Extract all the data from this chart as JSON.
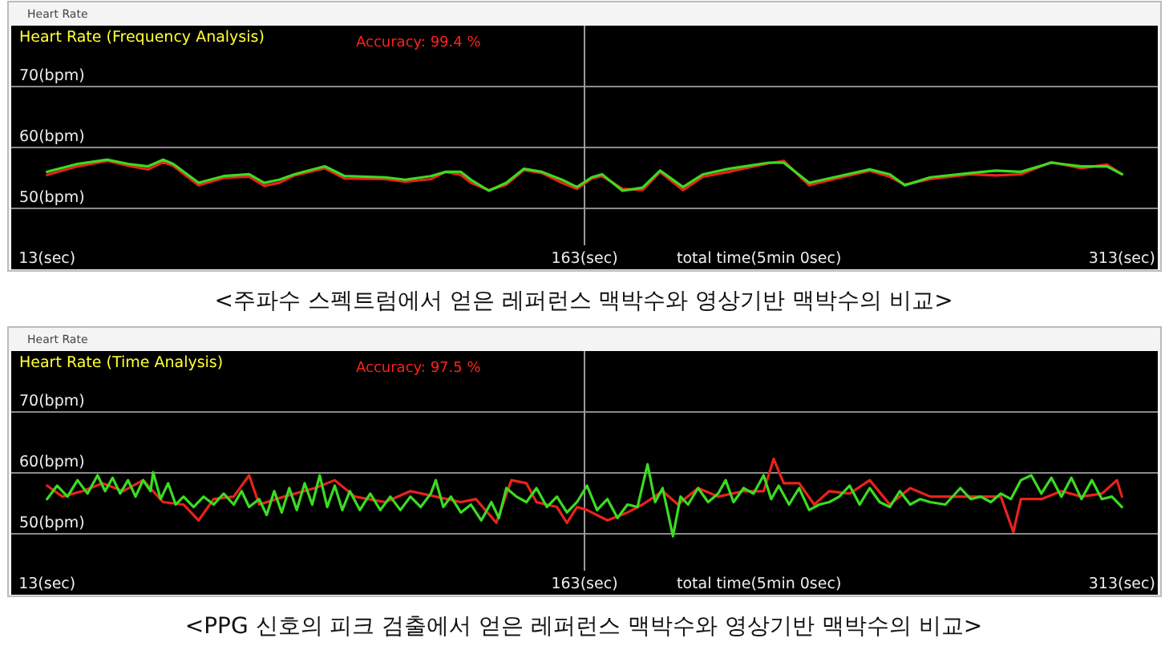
{
  "chart_data": [
    {
      "type": "line",
      "subtitle": "Heart Rate",
      "title": "Heart Rate (Frequency Analysis)",
      "annotations": [
        "Accuracy: 99.4 %",
        "total time(5min 0sec)",
        "<주파수 스펙트럼에서 얻은 레퍼런스 맥박수와 영상기반 맥박수의 비교>"
      ],
      "xlim": [
        3,
        323
      ],
      "ylim": [
        40,
        80
      ],
      "xticks": [
        {
          "value": 13,
          "label": "13(sec)"
        },
        {
          "value": 163,
          "label": "163(sec)"
        },
        {
          "value": 313,
          "label": "313(sec)"
        }
      ],
      "yticks": [
        {
          "value": 50,
          "label": "50(bpm)"
        },
        {
          "value": 60,
          "label": "60(bpm)"
        },
        {
          "value": 70,
          "label": "70(bpm)"
        }
      ],
      "grid": "y",
      "ref_lines": [
        {
          "axis": "x",
          "value": 163,
          "color": "#9a9a9a"
        }
      ],
      "series": [
        {
          "color": "#e8231c",
          "x": [
            13,
            21.5,
            29.9,
            35.6,
            41.2,
            45.4,
            48.2,
            55.3,
            62.3,
            69.4,
            73.6,
            77.8,
            82.0,
            90.5,
            96.1,
            107.4,
            113.0,
            120.1,
            124.3,
            128.5,
            131.3,
            136.3,
            141.2,
            146.1,
            151.1,
            156.7,
            160.9,
            165,
            167.9,
            173.6,
            179.2,
            184.1,
            190.5,
            196.1,
            203.2,
            214.4,
            218.6,
            225.7,
            234.1,
            242.6,
            248.2,
            252.4,
            259.5,
            270.8,
            277.8,
            284.8,
            293.3,
            301.7,
            308.8,
            313
          ],
          "values": [
            55.5,
            56.9,
            57.8,
            57.0,
            56.4,
            57.6,
            57.0,
            53.8,
            55.0,
            55.2,
            53.7,
            54.2,
            55.4,
            56.6,
            54.9,
            54.8,
            54.4,
            54.8,
            56.0,
            55.5,
            54.2,
            53.0,
            53.9,
            56.3,
            55.8,
            54.2,
            53.2,
            54.9,
            55.3,
            53.2,
            53.0,
            56.0,
            53.0,
            55.2,
            56.0,
            57.4,
            57.8,
            53.8,
            55.0,
            56.2,
            55.2,
            53.9,
            54.8,
            55.6,
            55.4,
            55.6,
            57.6,
            56.6,
            57.2,
            55.6
          ]
        },
        {
          "color": "#3bdc21",
          "x": [
            13,
            21.5,
            29.9,
            35.6,
            41.2,
            45.4,
            48.2,
            55.3,
            62.3,
            69.4,
            73.6,
            77.8,
            82.0,
            90.5,
            96.1,
            107.4,
            113.0,
            120.1,
            124.3,
            128.5,
            131.3,
            136.3,
            141.2,
            146.1,
            151.1,
            156.7,
            160.9,
            165,
            167.9,
            173.6,
            179.2,
            184.1,
            190.5,
            196.1,
            203.2,
            214.4,
            218.6,
            225.7,
            234.1,
            242.6,
            248.2,
            252.4,
            259.5,
            270.8,
            277.8,
            284.8,
            293.3,
            301.7,
            308.8,
            313
          ],
          "values": [
            56.0,
            57.3,
            58.0,
            57.3,
            56.9,
            58.0,
            57.3,
            54.2,
            55.3,
            55.6,
            54.2,
            54.7,
            55.6,
            56.9,
            55.3,
            55.1,
            54.7,
            55.3,
            56.0,
            56.0,
            54.7,
            52.9,
            54.2,
            56.5,
            56.0,
            54.7,
            53.5,
            55.1,
            55.6,
            52.9,
            53.4,
            56.2,
            53.5,
            55.6,
            56.5,
            57.5,
            57.5,
            54.2,
            55.3,
            56.4,
            55.6,
            53.8,
            55.1,
            55.8,
            56.2,
            56.0,
            57.5,
            56.9,
            56.9,
            55.6
          ]
        }
      ]
    },
    {
      "type": "line",
      "subtitle": "Heart Rate",
      "title": "Heart Rate (Time Analysis)",
      "annotations": [
        "Accuracy: 97.5 %",
        "total time(5min 0sec)",
        "<PPG 신호의 피크 검출에서 얻은 레퍼런스 맥박수와 영상기반 맥박수의 비교>"
      ],
      "xlim": [
        3,
        323
      ],
      "ylim": [
        40,
        80
      ],
      "xticks": [
        {
          "value": 13,
          "label": "13(sec)"
        },
        {
          "value": 163,
          "label": "163(sec)"
        },
        {
          "value": 313,
          "label": "313(sec)"
        }
      ],
      "yticks": [
        {
          "value": 50,
          "label": "50(bpm)"
        },
        {
          "value": 60,
          "label": "60(bpm)"
        },
        {
          "value": 70,
          "label": "70(bpm)"
        }
      ],
      "grid": "y",
      "ref_lines": [
        {
          "axis": "x",
          "value": 163,
          "color": "#9a9a9a"
        }
      ],
      "series": [
        {
          "color": "#e8231c",
          "x": [
            13.0,
            17.3,
            22.9,
            28.5,
            34.2,
            39.8,
            45.4,
            51.1,
            55.3,
            59.5,
            65.1,
            69.4,
            72.2,
            79.2,
            87.7,
            93.3,
            98.9,
            107.4,
            114.4,
            121.5,
            128.5,
            132.7,
            138.4,
            142.6,
            146.8,
            149.6,
            155.3,
            158.1,
            160.9,
            163.7,
            169.4,
            175.0,
            179.2,
            184.8,
            189.1,
            194.7,
            200.3,
            207.4,
            213.0,
            215.8,
            218.6,
            222.9,
            227.1,
            231.3,
            237.0,
            242.6,
            248.2,
            253.9,
            259.5,
            266.5,
            273.6,
            279.2,
            282.7,
            284.8,
            290.5,
            296.1,
            301.7,
            307.4,
            311.6,
            313
          ],
          "values": [
            57.9,
            56.1,
            57.0,
            58.3,
            57.0,
            58.8,
            55.2,
            54.8,
            52.2,
            55.7,
            56.1,
            59.6,
            54.8,
            56.1,
            57.5,
            58.8,
            56.1,
            55.2,
            57.0,
            56.1,
            55.2,
            55.7,
            51.8,
            58.8,
            58.3,
            55.2,
            54.4,
            51.8,
            54.4,
            53.9,
            52.2,
            53.5,
            54.8,
            57.0,
            54.8,
            57.5,
            56.1,
            57.0,
            57.0,
            62.3,
            58.3,
            58.3,
            54.8,
            57.0,
            56.6,
            58.8,
            54.8,
            57.5,
            56.1,
            56.1,
            56.1,
            56.1,
            50.3,
            55.7,
            55.7,
            57.0,
            56.1,
            56.6,
            58.8,
            56.1
          ]
        },
        {
          "color": "#3bdc21",
          "x": [
            13.0,
            15.8,
            18.7,
            21.5,
            24.3,
            27.1,
            29.2,
            31.3,
            33.4,
            35.6,
            37.7,
            39.8,
            41.9,
            42.6,
            44.7,
            46.8,
            48.9,
            51.1,
            53.9,
            56.7,
            59.5,
            62.3,
            65.1,
            67.3,
            69.4,
            72.2,
            74.3,
            76.4,
            78.5,
            80.6,
            82.7,
            84.9,
            87.0,
            89.1,
            91.2,
            93.3,
            95.4,
            97.5,
            100.3,
            103.2,
            106.0,
            108.8,
            111.6,
            114.4,
            117.3,
            120.1,
            121.5,
            123.6,
            125.7,
            128.5,
            131.3,
            134.2,
            137.0,
            139.1,
            141.2,
            144.0,
            146.8,
            149.6,
            152.5,
            155.3,
            158.1,
            160.9,
            163.7,
            166.5,
            169.4,
            172.2,
            175.0,
            177.8,
            180.6,
            182.7,
            184.8,
            187.7,
            189.8,
            191.9,
            194.7,
            197.5,
            200.3,
            202.4,
            204.6,
            207.4,
            210.2,
            213.0,
            215.1,
            217.2,
            220.1,
            222.9,
            225.7,
            228.5,
            231.3,
            234.1,
            237.0,
            239.8,
            242.6,
            245.4,
            248.2,
            251.0,
            253.9,
            256.7,
            259.5,
            263.7,
            267.9,
            270.8,
            273.6,
            276.4,
            279.2,
            282.0,
            284.8,
            287.7,
            290.5,
            293.3,
            296.1,
            298.9,
            301.7,
            304.6,
            307.4,
            310.2,
            313
          ],
          "values": [
            55.7,
            57.9,
            56.1,
            58.8,
            56.6,
            59.6,
            57.0,
            59.2,
            56.6,
            58.8,
            56.1,
            58.8,
            57.0,
            60.1,
            55.7,
            58.3,
            54.8,
            56.1,
            54.4,
            56.1,
            54.8,
            56.6,
            54.8,
            57.0,
            54.4,
            55.7,
            53.1,
            57.0,
            53.5,
            57.5,
            53.9,
            58.3,
            54.8,
            59.6,
            54.4,
            57.9,
            53.9,
            57.0,
            53.9,
            56.6,
            53.9,
            56.1,
            53.9,
            56.1,
            54.4,
            56.6,
            58.8,
            54.4,
            56.1,
            53.5,
            54.8,
            52.2,
            55.2,
            52.6,
            57.5,
            56.1,
            55.2,
            57.5,
            54.4,
            56.1,
            53.5,
            55.2,
            57.9,
            53.9,
            55.7,
            52.6,
            54.8,
            54.4,
            61.4,
            55.2,
            57.5,
            49.6,
            56.1,
            54.8,
            57.5,
            55.2,
            56.6,
            58.8,
            55.2,
            57.5,
            56.6,
            59.6,
            55.7,
            57.9,
            54.8,
            57.5,
            53.9,
            54.8,
            55.2,
            56.1,
            57.9,
            54.8,
            57.5,
            55.2,
            54.4,
            57.0,
            54.8,
            55.7,
            55.2,
            54.8,
            57.5,
            55.7,
            56.1,
            55.2,
            56.6,
            55.7,
            58.8,
            59.6,
            56.6,
            59.2,
            56.1,
            59.2,
            55.7,
            58.8,
            55.7,
            56.1,
            54.4
          ]
        }
      ]
    }
  ]
}
